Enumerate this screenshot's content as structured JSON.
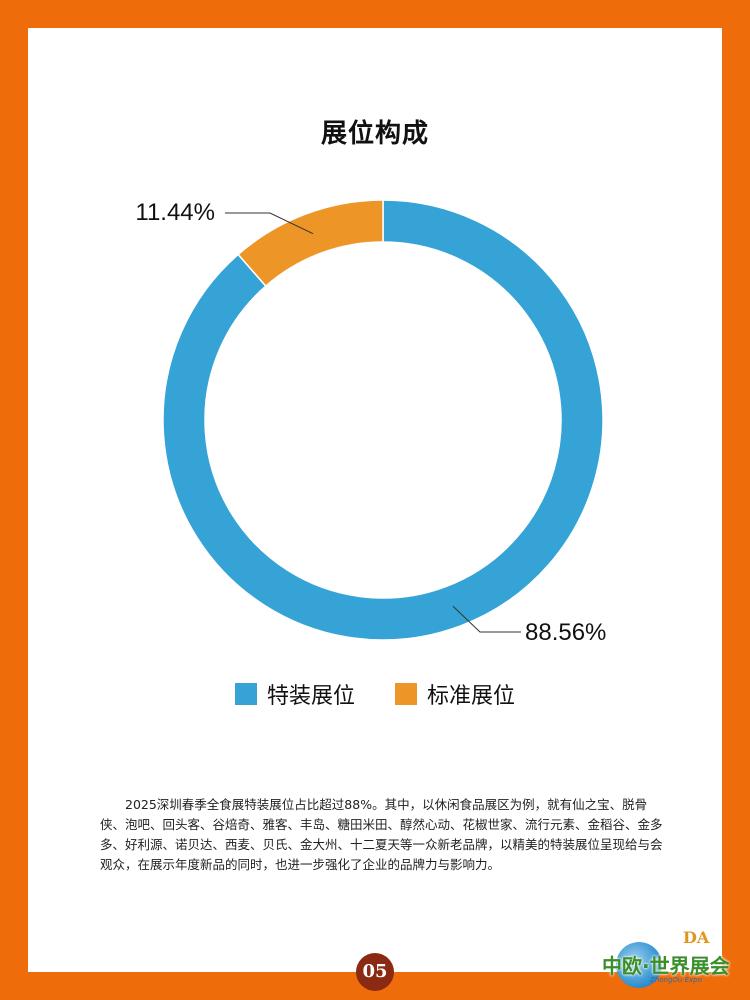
{
  "page": {
    "title": "展位构成",
    "page_number": "05",
    "body_text": "2025深圳春季全食展特装展位占比超过88%。其中，以休闲食品展区为例，就有仙之宝、脱骨侠、泡吧、回头客、谷焙奇、雅客、丰岛、糖田米田、醇然心动、花椒世家、流行元素、金稻谷、金多多、好利源、诺贝达、西麦、贝氏、金大州、十二夏天等一众新老品牌，以精美的特装展位呈现给与会观众，在展示年度新品的同时，也进一步强化了企业的品牌力与影响力。",
    "logo": {
      "mark": "DA",
      "name": "中欧·世界展会",
      "sub": "ZhongOu Expo"
    },
    "colors": {
      "frame": "#ef6c0a",
      "page_badge": "#8a2a12"
    }
  },
  "chart_data": {
    "type": "pie",
    "variant": "donut",
    "title": "展位构成",
    "slices": [
      {
        "name": "特装展位",
        "value": 88.56,
        "label": "88.56%",
        "color": "#35a3d6"
      },
      {
        "name": "标准展位",
        "value": 11.44,
        "label": "11.44%",
        "color": "#ee9527"
      }
    ],
    "start_angle": "12 o'clock",
    "direction": "clockwise",
    "legend_position": "bottom"
  }
}
